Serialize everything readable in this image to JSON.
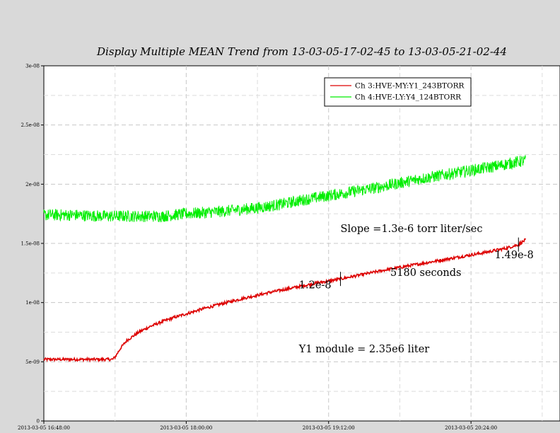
{
  "chart_data": {
    "type": "line",
    "title": "Display Multiple MEAN Trend from 13-03-05-17-02-45 to 13-03-05-21-02-44",
    "xlabel": "",
    "ylabel": "",
    "x_unit": "hours since 2013-03-05 16:48",
    "xlim": [
      0,
      4.35
    ],
    "ylim": [
      0,
      3e-08
    ],
    "x_tick_values": [
      0,
      1.2,
      2.4,
      3.6
    ],
    "x_tick_labels": [
      "2013-03-05 16:48:00",
      "2013-03-05 18:00:00",
      "2013-03-05 19:12:00",
      "2013-03-05 20:24:00"
    ],
    "y_tick_values": [
      0,
      5e-09,
      1e-08,
      1.5e-08,
      2e-08,
      2.5e-08,
      3e-08
    ],
    "y_tick_labels": [
      "0",
      "5e-09",
      "1e-08",
      "1.5e-08",
      "2e-08",
      "2.5e-08",
      "3e-08"
    ],
    "grid": true,
    "legend_position": "top-right",
    "series": [
      {
        "name": "Ch 3:HVE-MY:Y1_243BTORR",
        "color": "#dd0000",
        "noise": 1.2e-10,
        "x": [
          0.0,
          0.24,
          0.5,
          0.58,
          0.6,
          0.65,
          0.7,
          0.8,
          0.9,
          1.0,
          1.1,
          1.2,
          1.35,
          1.5,
          1.7,
          1.9,
          2.1,
          2.3,
          2.5,
          2.7,
          2.9,
          3.1,
          3.3,
          3.5,
          3.7,
          3.9,
          4.0,
          4.06
        ],
        "y": [
          5.2e-09,
          5.2e-09,
          5.2e-09,
          5.2e-09,
          5.4e-09,
          6.2e-09,
          6.8e-09,
          7.5e-09,
          8e-09,
          8.4e-09,
          8.75e-09,
          9.05e-09,
          9.5e-09,
          9.9e-09,
          1.04e-08,
          1.085e-08,
          1.125e-08,
          1.165e-08,
          1.2e-08,
          1.24e-08,
          1.28e-08,
          1.315e-08,
          1.35e-08,
          1.385e-08,
          1.42e-08,
          1.46e-08,
          1.49e-08,
          1.53e-08
        ]
      },
      {
        "name": "Ch 4:HVE-LY:Y4_124BTORR",
        "color": "#00ee00",
        "noise": 5e-10,
        "x": [
          0.0,
          0.24,
          0.5,
          0.8,
          1.0,
          1.2,
          1.5,
          1.8,
          2.0,
          2.2,
          2.5,
          2.8,
          3.0,
          3.2,
          3.5,
          3.8,
          4.0,
          4.06
        ],
        "y": [
          1.74e-08,
          1.74e-08,
          1.73e-08,
          1.73e-08,
          1.73e-08,
          1.75e-08,
          1.77e-08,
          1.8e-08,
          1.83e-08,
          1.87e-08,
          1.92e-08,
          1.97e-08,
          2.01e-08,
          2.05e-08,
          2.1e-08,
          2.15e-08,
          2.19e-08,
          2.2e-08
        ]
      }
    ],
    "annotations": [
      {
        "text": "Slope =1.3e-6 torr liter/sec",
        "x": 2.5,
        "y": 1.595e-08
      },
      {
        "text": "1.49e-8",
        "x": 3.8,
        "y": 1.375e-08,
        "marker_x": 4.0,
        "marker_y": 1.49e-08
      },
      {
        "text": "5180 seconds",
        "x": 2.92,
        "y": 1.225e-08
      },
      {
        "text": "1.2e-8",
        "x": 2.15,
        "y": 1.12e-08,
        "marker_x": 2.5,
        "marker_y": 1.2e-08
      },
      {
        "text": "Y1 module = 2.35e6 liter",
        "x": 2.15,
        "y": 5.8e-09
      }
    ]
  }
}
